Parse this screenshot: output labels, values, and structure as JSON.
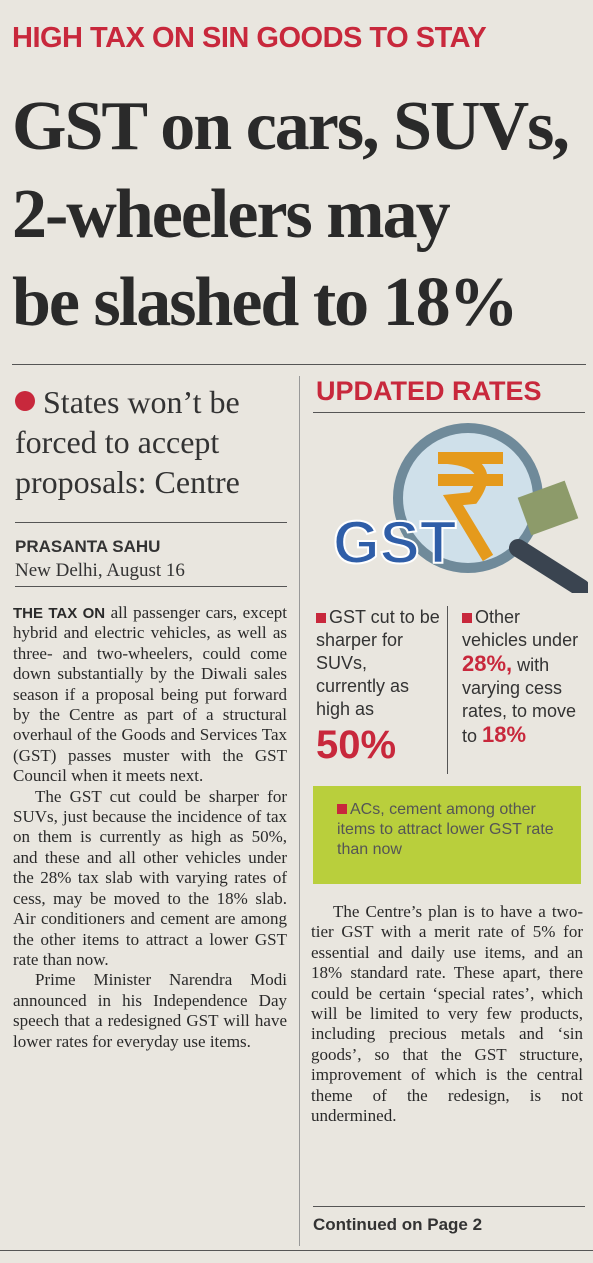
{
  "kicker": "HIGH TAX ON SIN GOODS TO STAY",
  "headline": {
    "lines": [
      "GST on cars, SUVs,",
      "2-wheelers may",
      "be slashed to 18%"
    ]
  },
  "subhead": "States won’t be forced to accept proposals: Centre",
  "byline": {
    "author": "PRASANTA SAHU",
    "dateline": "New Delhi, August 16"
  },
  "body_left": {
    "lead": "THE TAX ON",
    "paragraphs": [
      "all passenger cars, except hybrid and electric vehicles, as well as three- and two-wheelers, could come down substantially by the Diwali sales season if a proposal being put forward by the Centre as part of a structural overhaul of the Goods and Services Tax (GST) passes muster with the GST Council when it meets next.",
      "The GST cut could be sharper for SUVs, just because the incidence of tax on them is currently as high as 50%, and these and all other vehicles under the 28% tax slab with varying rates of cess, may be moved to the 18% slab. Air conditioners and cement are among the other items to attract a lower GST rate than now.",
      "Prime Minister Narendra Modi announced in his Independence Day speech that a redesigned GST will have lower rates for everyday use items."
    ]
  },
  "sidebar": {
    "title": "UPDATED RATES",
    "image_text": "GST",
    "box1": {
      "text": "GST cut to be sharper for SUVs, currently as high as",
      "figure": "50%"
    },
    "box2": {
      "text": "Other vehicles under",
      "figure1": "28%,",
      "text2": "with varying cess rates, to move to",
      "figure2": "18%"
    },
    "highlight": "ACs, cement among other items to attract lower GST rate than now"
  },
  "body_right": "The Centre’s plan is to have a two-tier GST with a merit rate of 5% for essential and daily use items, and an 18% standard rate. These apart, there could be certain ‘special rates’, which will be limited to very few products, including precious metals and ‘sin goods’, so that the GST structure, improvement of which is the central theme of the redesign, is not undermined.",
  "continued": "Continued on Page 2"
}
